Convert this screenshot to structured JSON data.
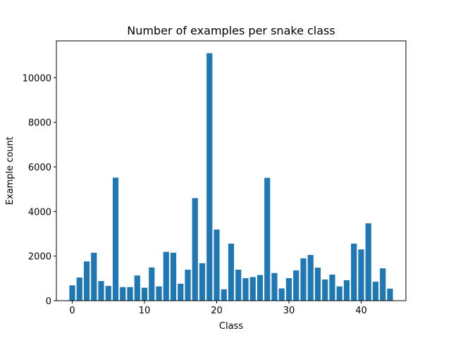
{
  "chart_data": {
    "type": "bar",
    "title": "Number of examples per snake class",
    "xlabel": "Class",
    "ylabel": "Example count",
    "x": [
      0,
      1,
      2,
      3,
      4,
      5,
      6,
      7,
      8,
      9,
      10,
      11,
      12,
      13,
      14,
      15,
      16,
      17,
      18,
      19,
      20,
      21,
      22,
      23,
      24,
      25,
      26,
      27,
      28,
      29,
      30,
      31,
      32,
      33,
      34,
      35,
      36,
      37,
      38,
      39,
      40,
      41,
      42,
      43,
      44
    ],
    "values": [
      690,
      1040,
      1760,
      2150,
      880,
      660,
      5520,
      610,
      610,
      1130,
      580,
      1490,
      640,
      2190,
      2150,
      760,
      1390,
      4600,
      1680,
      11100,
      3190,
      510,
      2560,
      1390,
      1010,
      1060,
      1150,
      5510,
      1240,
      550,
      1010,
      1360,
      1900,
      2050,
      1480,
      950,
      1170,
      640,
      920,
      2560,
      2300,
      3470,
      850,
      1450,
      540
    ],
    "xlim": [
      -2.2,
      46.2
    ],
    "ylim": [
      0,
      11655
    ],
    "xticks": [
      0,
      10,
      20,
      30,
      40
    ],
    "xtick_labels": [
      "0",
      "10",
      "20",
      "30",
      "40"
    ],
    "yticks": [
      0,
      2000,
      4000,
      6000,
      8000,
      10000
    ],
    "ytick_labels": [
      "0",
      "2000",
      "4000",
      "6000",
      "8000",
      "10000"
    ],
    "bar_color": "#1f77b4",
    "grid": false,
    "legend": null
  }
}
